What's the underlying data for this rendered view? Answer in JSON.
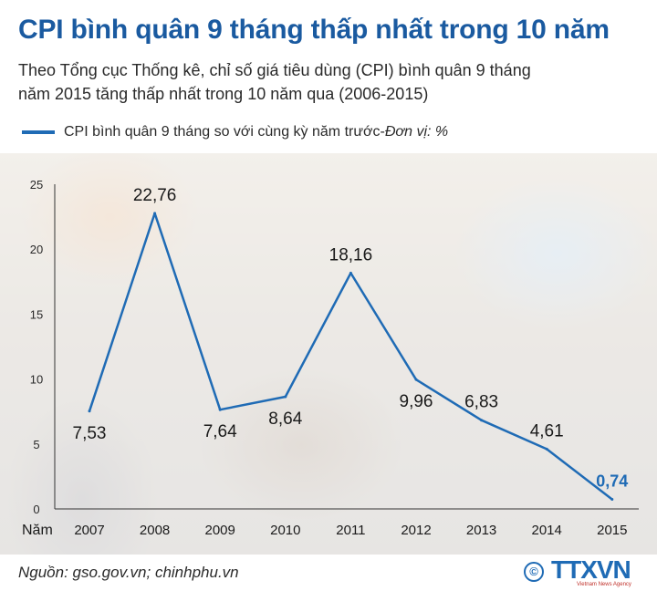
{
  "header": {
    "title": "CPI bình quân 9 tháng thấp nhất trong 10 năm",
    "subtitle_line1": "Theo Tổng cục Thống kê, chỉ số giá tiêu dùng (CPI) bình quân 9 tháng",
    "subtitle_line2": "năm 2015 tăng thấp nhất trong 10 năm qua (2006-2015)"
  },
  "legend": {
    "label": "CPI bình quân 9 tháng so với cùng kỳ năm trước-",
    "unit": "Đơn vị: %"
  },
  "chart_data": {
    "type": "line",
    "xlabel": "Năm",
    "x": [
      "2007",
      "2008",
      "2009",
      "2010",
      "2011",
      "2012",
      "2013",
      "2014",
      "2015"
    ],
    "series": [
      {
        "name": "CPI bình quân 9 tháng so với cùng kỳ năm trước",
        "values": [
          7.53,
          22.76,
          7.64,
          8.64,
          18.16,
          9.96,
          6.83,
          4.61,
          0.74
        ],
        "labels": [
          "7,53",
          "22,76",
          "7,64",
          "8,64",
          "18,16",
          "9,96",
          "6,83",
          "4,61",
          "0,74"
        ]
      }
    ],
    "highlight_label_index": 8,
    "yticks": [
      0,
      5,
      10,
      15,
      20,
      25
    ],
    "ylim": [
      0,
      25
    ],
    "grid": false,
    "colors": {
      "line": "#1f6bb5",
      "highlight_label": "#1f6bb5",
      "text": "#1a1a1a"
    }
  },
  "footer": {
    "source": "Nguồn: gso.gov.vn; chinhphu.vn",
    "logo_symbol": "©",
    "logo_text": "TTXVN",
    "logo_subtext": "Vietnam News Agency"
  }
}
